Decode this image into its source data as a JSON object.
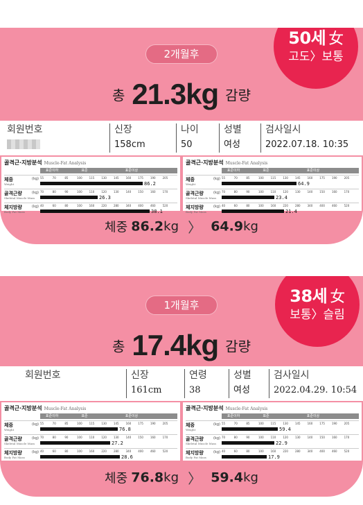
{
  "cards": [
    {
      "period": "2개월후",
      "age": "50세",
      "sex": "女",
      "change": "고도〉보통",
      "loss_prefix": "총",
      "loss_value": "21.3kg",
      "loss_suffix": "감량",
      "info": {
        "member_label": "회원번호",
        "height_label": "신장",
        "height_value": "158cm",
        "age_label": "나이",
        "age_value": "50",
        "sex_label": "성별",
        "sex_value": "여성",
        "date_label": "검사일시",
        "date_value": "2022.07.18.  10:35"
      },
      "before": {
        "title": "골격근·지방분석",
        "title_en": "Muscle-Fat Analysis",
        "legend": [
          "표준이하",
          "표준",
          "표준이상"
        ],
        "rows": [
          {
            "name": "체중",
            "en": "Weight",
            "unit": "(kg)",
            "ticks": [
              "55",
              "70",
              "85",
              "100",
              "115",
              "130",
              "145",
              "160",
              "175",
              "190",
              "205"
            ],
            "value": "86.2",
            "level": 0.82
          },
          {
            "name": "골격근량",
            "en": "Skeletal Muscle Mass",
            "unit": "(kg)",
            "ticks": [
              "70",
              "80",
              "90",
              "100",
              "110",
              "120",
              "130",
              "140",
              "150",
              "160",
              "170"
            ],
            "value": "26.3",
            "level": 0.46
          },
          {
            "name": "체지방량",
            "en": "Body Fat Mass",
            "unit": "(kg)",
            "ticks": [
              "40",
              "60",
              "80",
              "100",
              "160",
              "220",
              "280",
              "340",
              "400",
              "460",
              "520"
            ],
            "value": "38.1",
            "level": 0.88
          }
        ]
      },
      "after": {
        "title": "골격근·지방분석",
        "title_en": "Muscle-Fat Analysis",
        "legend": [
          "표준이하",
          "표준",
          "표준이상"
        ],
        "rows": [
          {
            "name": "체중",
            "en": "Weight",
            "unit": "(kg)",
            "ticks": [
              "55",
              "70",
              "85",
              "100",
              "115",
              "130",
              "145",
              "160",
              "175",
              "190",
              "205"
            ],
            "value": "64.9",
            "level": 0.6
          },
          {
            "name": "골격근량",
            "en": "Skeletal Muscle Mass",
            "unit": "(kg)",
            "ticks": [
              "70",
              "80",
              "90",
              "100",
              "110",
              "120",
              "130",
              "140",
              "150",
              "160",
              "170"
            ],
            "value": "23.4",
            "level": 0.42
          },
          {
            "name": "체지방량",
            "en": "Body Fat Mass",
            "unit": "(kg)",
            "ticks": [
              "40",
              "60",
              "80",
              "100",
              "160",
              "220",
              "280",
              "340",
              "400",
              "460",
              "520"
            ],
            "value": "21.4",
            "level": 0.5
          }
        ]
      },
      "summary": {
        "label": "체중",
        "from": "86.2",
        "to": "64.9",
        "unit": "kg",
        "arrow": "〉"
      }
    },
    {
      "period": "1개월후",
      "age": "38세",
      "sex": "女",
      "change": "보통〉슬림",
      "loss_prefix": "총",
      "loss_value": "17.4kg",
      "loss_suffix": "감량",
      "info": {
        "member_label": "회원번호",
        "height_label": "신장",
        "height_value": "161cm",
        "age_label": "연령",
        "age_value": "38",
        "sex_label": "성별",
        "sex_value": "여성",
        "date_label": "검사일시",
        "date_value": "2022.04.29.  10:54"
      },
      "before": {
        "title": "골격근·지방분석",
        "title_en": "Muscle-Fat Analysis",
        "legend": [
          "표준이하",
          "표준",
          "표준이상"
        ],
        "rows": [
          {
            "name": "체중",
            "en": "Weight",
            "unit": "(kg)",
            "ticks": [
              "55",
              "70",
              "85",
              "100",
              "115",
              "130",
              "145",
              "160",
              "175",
              "190",
              "205"
            ],
            "value": "76.8",
            "level": 0.62
          },
          {
            "name": "골격근량",
            "en": "Skeletal Muscle Mass",
            "unit": "(kg)",
            "ticks": [
              "70",
              "80",
              "90",
              "100",
              "110",
              "120",
              "130",
              "140",
              "150",
              "160",
              "170"
            ],
            "value": "27.2",
            "level": 0.56
          },
          {
            "name": "체지방량",
            "en": "Body Fat Mass",
            "unit": "(kg)",
            "ticks": [
              "40",
              "60",
              "80",
              "100",
              "160",
              "220",
              "280",
              "340",
              "400",
              "460",
              "520"
            ],
            "value": "28.6",
            "level": 0.64
          }
        ]
      },
      "after": {
        "title": "골격근·지방분석",
        "title_en": "Muscle-Fat Analysis",
        "legend": [
          "표준이하",
          "표준",
          "표준이상"
        ],
        "rows": [
          {
            "name": "체중",
            "en": "Weight",
            "unit": "(kg)",
            "ticks": [
              "55",
              "70",
              "85",
              "100",
              "115",
              "130",
              "145",
              "160",
              "175",
              "190",
              "205"
            ],
            "value": "59.4",
            "level": 0.45
          },
          {
            "name": "골격근량",
            "en": "Skeletal Muscle Mass",
            "unit": "(kg)",
            "ticks": [
              "70",
              "80",
              "90",
              "100",
              "110",
              "120",
              "130",
              "140",
              "150",
              "160",
              "170"
            ],
            "value": "22.9",
            "level": 0.42
          },
          {
            "name": "체지방량",
            "en": "Body Fat Mass",
            "unit": "(kg)",
            "ticks": [
              "40",
              "60",
              "80",
              "100",
              "160",
              "220",
              "280",
              "340",
              "400",
              "460",
              "520"
            ],
            "value": "17.9",
            "level": 0.36
          }
        ]
      },
      "summary": {
        "label": "체중",
        "from": "76.8",
        "to": "59.4",
        "unit": "kg",
        "arrow": "〉"
      }
    }
  ]
}
